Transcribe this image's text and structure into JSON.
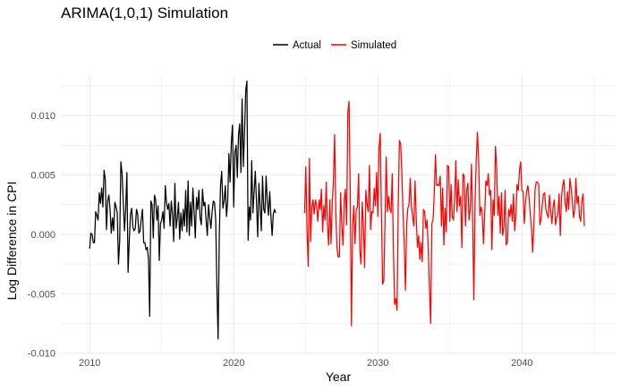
{
  "chart_data": {
    "type": "line",
    "title": "ARIMA(1,0,1) Simulation",
    "xlabel": "Year",
    "ylabel": "Log Difference in CPI",
    "xlim": [
      2008.0,
      2046.5
    ],
    "ylim": [
      -0.0101,
      0.0134
    ],
    "x_ticks": [
      2010,
      2020,
      2030,
      2040
    ],
    "y_ticks": [
      -0.01,
      -0.005,
      0.0,
      0.005,
      0.01
    ],
    "x_tick_labels": [
      "2010",
      "2020",
      "2030",
      "2040"
    ],
    "y_tick_labels": [
      "-0.010",
      "-0.005",
      "0.000",
      "0.005",
      "0.010"
    ],
    "grid": true,
    "legend": {
      "position": "top"
    },
    "colors": {
      "Actual": "#000000",
      "Simulated": "#ff0000",
      "grid": "#ebebeb"
    },
    "series": [
      {
        "name": "Actual",
        "color": "#000000",
        "x_start": 2010.0,
        "x_step": 0.0833,
        "values": [
          -0.0012,
          0.0001,
          0.0,
          -0.0007,
          -0.0007,
          0.0019,
          0.0016,
          0.0012,
          0.0035,
          0.0026,
          0.0039,
          0.0023,
          0.0054,
          0.0046,
          0.0004,
          0.0028,
          0.0033,
          0.0021,
          0.0001,
          0.0014,
          0.0003,
          0.0027,
          0.0023,
          0.0018,
          -0.0025,
          -0.0006,
          0.0061,
          0.0051,
          0.0027,
          0.0003,
          0.0021,
          0.0052,
          -0.0032,
          -0.0005,
          0.0017,
          0.0022,
          0.0006,
          0.0003,
          0.0005,
          0.0021,
          0.0017,
          0.0001,
          0.0003,
          0.0013,
          0.0021,
          -0.0007,
          -0.0007,
          -0.0013,
          -0.0011,
          -0.0021,
          -0.0069,
          0.0028,
          0.0025,
          -0.0003,
          0.0033,
          0.0029,
          0.0012,
          0.0024,
          -0.0022,
          0.0009,
          0.0012,
          0.0019,
          0.0005,
          0.0041,
          0.0027,
          0.0021,
          0.0026,
          0.0007,
          0.0028,
          0.0017,
          -0.0006,
          0.0043,
          0.0005,
          0.0014,
          0.0027,
          -0.0004,
          0.0018,
          0.0003,
          0.0021,
          0.0007,
          0.0037,
          0.0002,
          0.0045,
          -0.0001,
          0.0027,
          0.0007,
          0.0039,
          0.0019,
          -0.0003,
          0.0031,
          0.0021,
          0.0037,
          0.0014,
          0.0008,
          0.0038,
          0.0024,
          0.0027,
          0.0012,
          -0.0001,
          0.0025,
          0.0014,
          0.0005,
          0.0019,
          0.0028,
          0.0027,
          0.0012,
          -0.0045,
          -0.0088,
          -0.0001,
          0.0041,
          0.0053,
          0.0022,
          0.0028,
          0.0041,
          0.0015,
          0.0028,
          0.0068,
          0.0044,
          0.0077,
          0.0092,
          0.0023,
          0.0069,
          0.0075,
          0.0048,
          0.0084,
          0.0093,
          0.0052,
          0.0114,
          0.0057,
          0.0085,
          0.0121,
          0.0129,
          -0.0005,
          0.0023,
          0.0012,
          0.0062,
          0.0018,
          0.0036,
          0.0053,
          0.0027,
          -0.0002,
          0.0043,
          0.0024,
          0.0003,
          0.0049,
          0.0021,
          0.0018,
          0.0049,
          0.0027,
          0.0016,
          0.0036,
          0.0015,
          -0.0001,
          0.0017,
          0.0021,
          0.0018
        ]
      },
      {
        "name": "Simulated",
        "color": "#ff0000",
        "x_start": 2024.9167,
        "x_step": 0.0833,
        "values": [
          0.0018,
          0.0057,
          0.0004,
          -0.0027,
          0.0064,
          -0.0006,
          0.0023,
          0.0029,
          0.0017,
          0.0029,
          0.0024,
          0.0011,
          0.0029,
          0.0021,
          0.0038,
          0.0002,
          0.0024,
          0.0012,
          0.0044,
          0.0009,
          -0.0009,
          0.0029,
          -0.0008,
          0.0025,
          0.0045,
          0.0084,
          0.0018,
          -0.0012,
          -0.0019,
          -0.0019,
          0.0035,
          0.0008,
          -0.0009,
          0.0029,
          0.0038,
          0.0008,
          0.0102,
          0.0112,
          0.0037,
          -0.0077,
          0.0006,
          0.0024,
          -0.0008,
          0.0021,
          0.0023,
          0.0051,
          -0.0013,
          -0.0025,
          0.0027,
          0.0007,
          -0.0028,
          0.0037,
          0.0026,
          0.0019,
          0.0058,
          0.0004,
          0.0019,
          0.0018,
          0.0039,
          0.0024,
          0.0052,
          0.0015,
          0.0073,
          0.0085,
          0.0015,
          -0.0042,
          -0.0039,
          0.0012,
          0.0065,
          0.0019,
          0.0032,
          0.0022,
          0.0018,
          0.0051,
          -0.0013,
          -0.0059,
          -0.0054,
          -0.0064,
          0.0025,
          0.0079,
          0.0076,
          0.0053,
          0.0017,
          -0.0007,
          -0.0047,
          0.0008,
          0.0022,
          0.0025,
          0.0047,
          0.0023,
          0.0015,
          0.0007,
          0.0045,
          0.0013,
          -0.0011,
          -0.0001,
          -0.0021,
          -0.0007,
          -0.0023,
          0.0021,
          0.0019,
          0.0005,
          0.0012,
          -0.0012,
          -0.0045,
          -0.0075,
          0.0009,
          0.0012,
          0.0034,
          0.0067,
          0.0041,
          0.0042,
          0.0041,
          0.0049,
          0.0007,
          0.0039,
          -0.0009,
          0.0022,
          0.0002,
          0.0058,
          0.0057,
          0.0011,
          0.0042,
          0.0015,
          0.0012,
          0.0029,
          0.0062,
          0.0019,
          0.0046,
          0.0024,
          0.0032,
          -0.0011,
          0.0051,
          0.0049,
          0.0007,
          0.0037,
          0.0043,
          0.0012,
          0.0022,
          0.0059,
          0.0011,
          -0.0055,
          0.0028,
          0.0063,
          0.0086,
          0.0062,
          0.0016,
          0.0023,
          0.0018,
          -0.0008,
          0.0016,
          0.0045,
          0.0041,
          0.0051,
          0.0033,
          0.0037,
          -0.0013,
          0.0029,
          0.0016,
          0.0074,
          0.0056,
          0.0016,
          0.0032,
          0.0001,
          0.0035,
          -0.0001,
          0.0006,
          0.0037,
          -0.0009,
          -0.0006,
          0.0021,
          0.0015,
          0.0025,
          0.0011,
          0.0034,
          0.0003,
          0.0016,
          0.0042,
          0.0037,
          0.0054,
          0.0061,
          0.0037,
          0.0036,
          0.0009,
          0.0027,
          0.0036,
          0.0041,
          0.0031,
          0.0017,
          0.0006,
          -0.0015,
          0.0008,
          0.0038,
          0.0044,
          0.0044,
          0.0042,
          0.0008,
          0.0013,
          0.0025,
          0.0034,
          0.0035,
          0.0021,
          0.0017,
          0.0014,
          0.0033,
          0.002,
          0.0009,
          0.0023,
          0.0029,
          0.0008,
          0.0014,
          0.0017,
          0.0034,
          -0.0001,
          0.0031,
          0.0041,
          0.0046,
          0.0027,
          0.0019,
          0.0036,
          0.0021,
          0.0047,
          0.0039,
          0.0029,
          0.0014,
          0.0021,
          0.0047,
          0.0026,
          0.0032,
          0.0015,
          0.0011,
          0.0028,
          0.0034,
          0.0007
        ]
      }
    ]
  }
}
